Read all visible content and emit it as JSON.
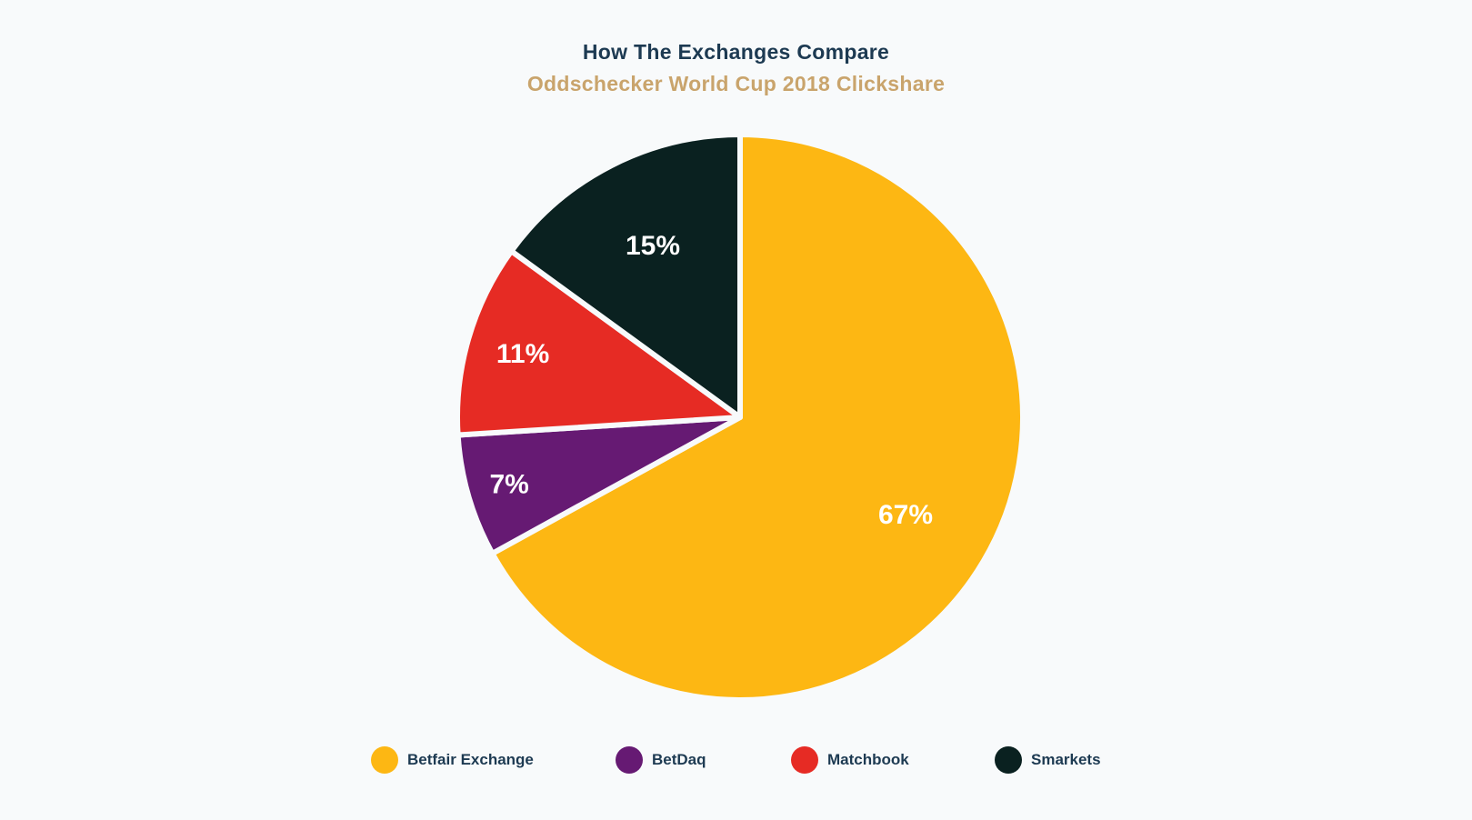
{
  "chart_data": {
    "type": "pie",
    "title": "How The Exchanges Compare",
    "subtitle": "Oddschecker World Cup 2018 Clickshare",
    "categories": [
      "Betfair Exchange",
      "BetDaq",
      "Matchbook",
      "Smarkets"
    ],
    "values": [
      67,
      7,
      11,
      15
    ],
    "labels": [
      "67%",
      "7%",
      "11%",
      "15%"
    ],
    "colors": [
      "#fdb713",
      "#661a73",
      "#e62b24",
      "#0a2120"
    ],
    "legend_position": "bottom",
    "start_angle": "12 o'clock",
    "direction": "clockwise"
  }
}
